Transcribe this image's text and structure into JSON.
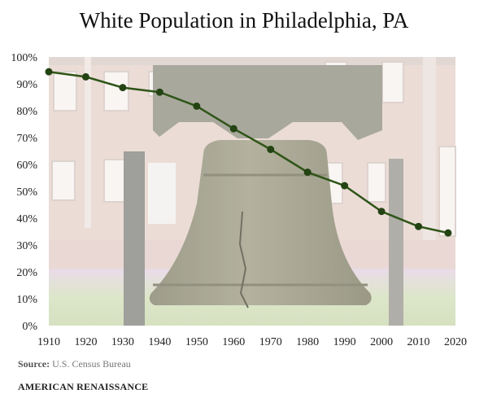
{
  "chart_data": {
    "type": "line",
    "title": "White Population in Philadelphia, PA",
    "xlabel": "",
    "ylabel": "",
    "x": [
      1910,
      1920,
      1930,
      1940,
      1950,
      1960,
      1970,
      1980,
      1990,
      2000,
      2010,
      2018
    ],
    "series": [
      {
        "values": [
          94.5,
          92.6,
          88.6,
          86.9,
          81.7,
          73.3,
          65.6,
          57.1,
          52.1,
          42.5,
          36.9,
          34.5
        ]
      }
    ],
    "xlim": [
      1910,
      2020
    ],
    "ylim": [
      0,
      100
    ],
    "x_ticks": [
      "1910",
      "1920",
      "1930",
      "1940",
      "1950",
      "1960",
      "1970",
      "1980",
      "1990",
      "2000",
      "2010",
      "2020"
    ],
    "y_ticks": [
      "0%",
      "10%",
      "20%",
      "30%",
      "40%",
      "50%",
      "60%",
      "70%",
      "80%",
      "90%",
      "100%"
    ],
    "grid": false,
    "line_color": "#2f5518",
    "marker_color": "#244313"
  },
  "source": {
    "label": "Source:",
    "text": "U.S. Census Bureau"
  },
  "brand": "AMERICAN RENAISSANCE"
}
